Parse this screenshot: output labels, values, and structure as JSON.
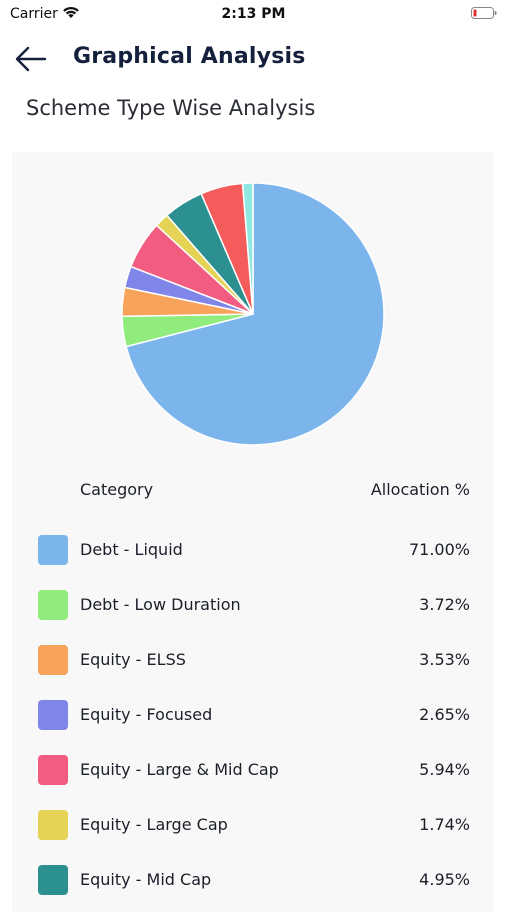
{
  "status": {
    "carrier": "Carrier",
    "time": "2:13 PM"
  },
  "nav": {
    "title": "Graphical Analysis"
  },
  "page": {
    "section_title": "Scheme Type Wise Analysis"
  },
  "table": {
    "category_header": "Category",
    "allocation_header": "Allocation %"
  },
  "chart_data": {
    "type": "pie",
    "title": "",
    "slices": [
      {
        "label": "Debt - Liquid",
        "value": 71.0,
        "display": "71.00%",
        "color": "#7cb5ec"
      },
      {
        "label": "Debt - Low Duration",
        "value": 3.72,
        "display": "3.72%",
        "color": "#90ed7d"
      },
      {
        "label": "Equity - ELSS",
        "value": 3.53,
        "display": "3.53%",
        "color": "#f7a35c"
      },
      {
        "label": "Equity - Focused",
        "value": 2.65,
        "display": "2.65%",
        "color": "#8085e9"
      },
      {
        "label": "Equity - Large & Mid Cap",
        "value": 5.94,
        "display": "5.94%",
        "color": "#f15c80"
      },
      {
        "label": "Equity - Large Cap",
        "value": 1.74,
        "display": "1.74%",
        "color": "#e4d354"
      },
      {
        "label": "Equity - Mid Cap",
        "value": 4.95,
        "display": "4.95%",
        "color": "#2b908f"
      },
      {
        "value": 5.2,
        "color": "#f45b5b"
      },
      {
        "value": 1.27,
        "color": "#91e8e1"
      }
    ]
  }
}
